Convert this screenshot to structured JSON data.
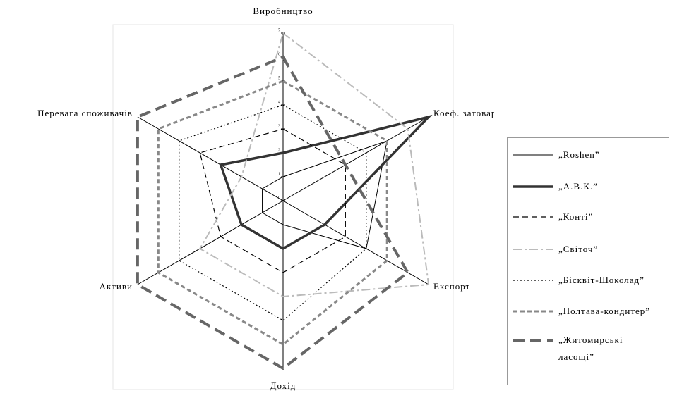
{
  "chart_data": {
    "type": "radar",
    "categories": [
      "Виробництво",
      "Коеф. затовареності",
      "Експорт",
      "Дохід",
      "Активи",
      "Перевага споживачів"
    ],
    "ylim": [
      0,
      7
    ],
    "yticks": [
      0,
      1,
      2,
      3,
      4,
      5,
      6,
      7
    ],
    "series": [
      {
        "name": "„Roshen”",
        "color": "#000000",
        "width": 1,
        "dash": "none",
        "values": [
          1,
          5,
          4,
          1,
          1,
          1
        ]
      },
      {
        "name": "„А.В.К.”",
        "color": "#333333",
        "width": 3.5,
        "dash": "none",
        "values": [
          2,
          7,
          2,
          2,
          2,
          3
        ]
      },
      {
        "name": "„Конті”",
        "color": "#000000",
        "width": 1.2,
        "dash": "8 5",
        "values": [
          3,
          3,
          3,
          3,
          3,
          4
        ]
      },
      {
        "name": "„Світоч”",
        "color": "#bbbbbb",
        "width": 2,
        "dash": "12 4 3 4",
        "values": [
          7,
          6,
          7,
          4,
          4,
          2
        ]
      },
      {
        "name": "„Бісквіт-Шоколад”",
        "color": "#000000",
        "width": 1.2,
        "dash": "2 3",
        "values": [
          4,
          4,
          4,
          5,
          5,
          5
        ]
      },
      {
        "name": "„Полтава-кондитер”",
        "color": "#888888",
        "width": 3,
        "dash": "6 4",
        "values": [
          5,
          5,
          5,
          6,
          6,
          6
        ]
      },
      {
        "name": "„Житомирські ласощі”",
        "color": "#666666",
        "width": 4,
        "dash": "16 8",
        "values": [
          6,
          3,
          6,
          7,
          7,
          7
        ]
      }
    ]
  }
}
